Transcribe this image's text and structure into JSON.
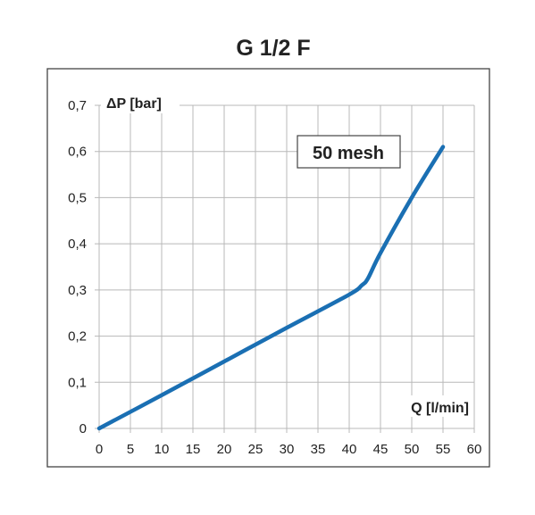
{
  "chart_data": {
    "type": "line",
    "title": "G 1/2 F",
    "xlabel": "Q  [l/min]",
    "ylabel": "ΔP  [bar]",
    "xlim": [
      0,
      60
    ],
    "ylim": [
      0,
      0.7
    ],
    "x_ticks": [
      0,
      5,
      10,
      15,
      20,
      25,
      30,
      35,
      40,
      45,
      50,
      55,
      60
    ],
    "x_tick_labels": [
      "0",
      "5",
      "10",
      "15",
      "20",
      "25",
      "30",
      "35",
      "40",
      "45",
      "50",
      "55",
      "60"
    ],
    "y_ticks": [
      0,
      0.1,
      0.2,
      0.3,
      0.4,
      0.5,
      0.6,
      0.7
    ],
    "y_tick_labels": [
      "0",
      "0,1",
      "0,2",
      "0,3",
      "0,4",
      "0,5",
      "0,6",
      "0,7"
    ],
    "grid": true,
    "annotation": "50 mesh",
    "series": [
      {
        "color": "#1a6fb3",
        "x": [
          0,
          10,
          20,
          30,
          40,
          42,
          43,
          45,
          50,
          55
        ],
        "y": [
          0,
          0.072,
          0.145,
          0.218,
          0.29,
          0.31,
          0.325,
          0.38,
          0.5,
          0.61
        ]
      }
    ]
  }
}
